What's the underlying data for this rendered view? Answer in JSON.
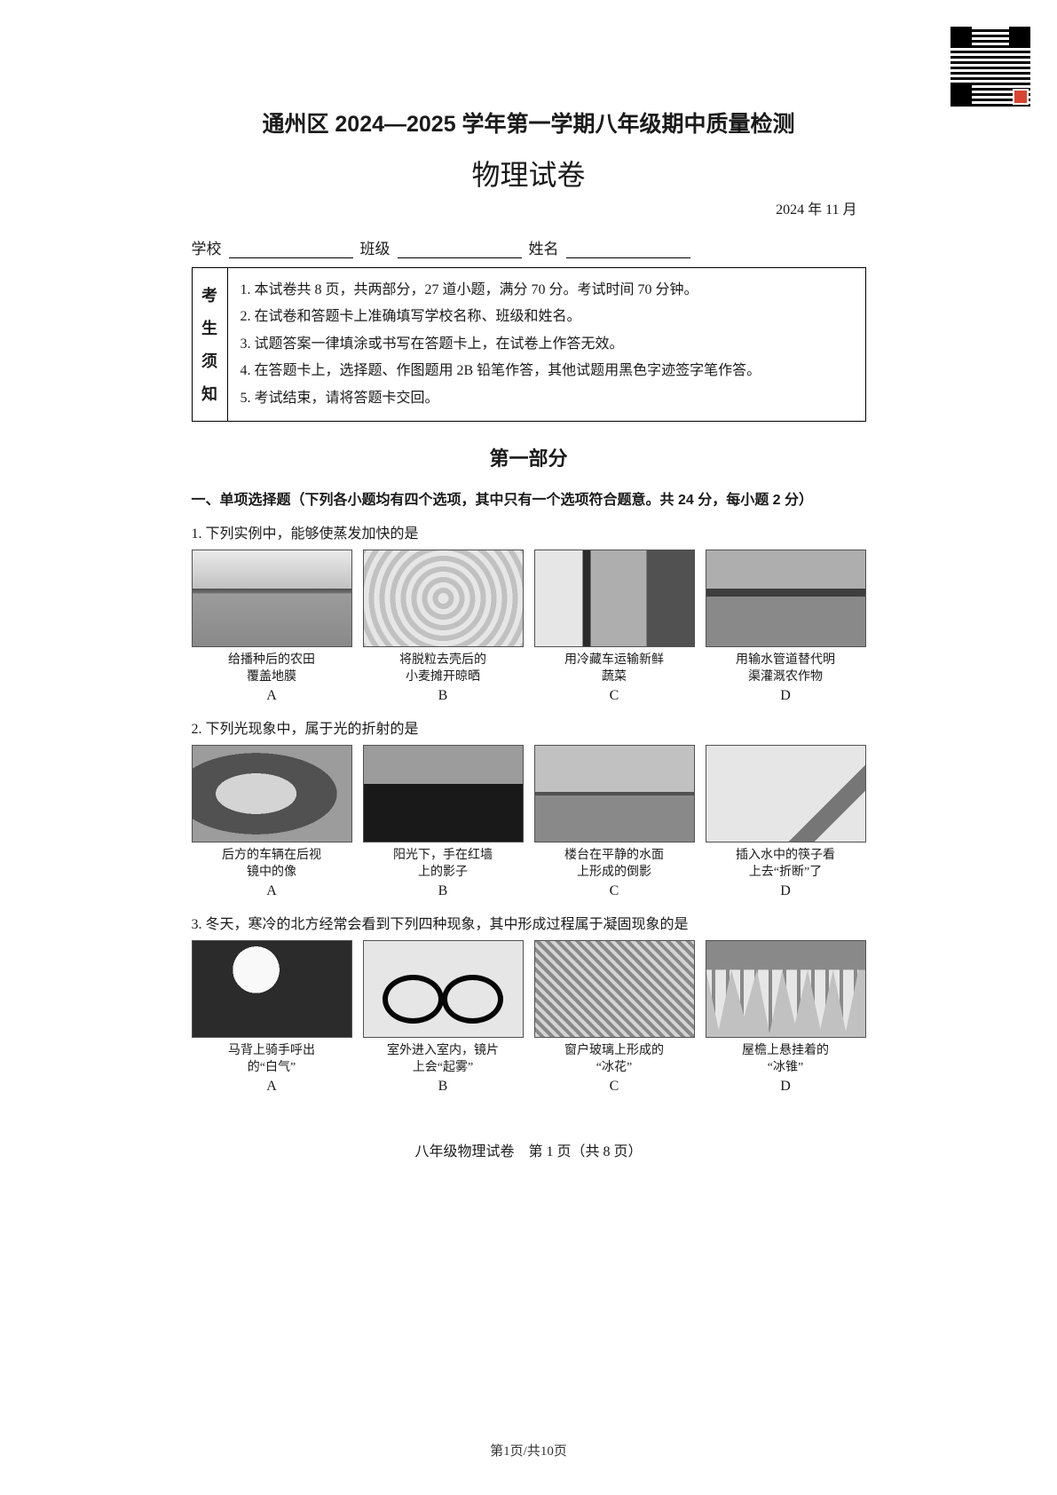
{
  "qr": {
    "badge_color": "#d94530"
  },
  "header": {
    "main_title": "通州区 2024—2025 学年第一学期八年级期中质量检测",
    "sub_title": "物理试卷",
    "date": "2024 年 11 月"
  },
  "info_fields": {
    "school_label": "学校",
    "class_label": "班级",
    "name_label": "姓名"
  },
  "notice": {
    "side_label_chars": [
      "考",
      "生",
      "须",
      "知"
    ],
    "items": [
      "1. 本试卷共 8 页，共两部分，27 道小题，满分 70 分。考试时间 70 分钟。",
      "2. 在试卷和答题卡上准确填写学校名称、班级和姓名。",
      "3. 试题答案一律填涂或书写在答题卡上，在试卷上作答无效。",
      "4. 在答题卡上，选择题、作图题用 2B 铅笔作答，其他试题用黑色字迹签字笔作答。",
      "5. 考试结束，请将答题卡交回。"
    ]
  },
  "section": {
    "title": "第一部分",
    "instruction": "一、单项选择题（下列各小题均有四个选项，其中只有一个选项符合题意。共 24 分，每小题 2 分）"
  },
  "questions": [
    {
      "number": "1",
      "text": "1. 下列实例中，能够使蒸发加快的是",
      "options": [
        {
          "img_class": "img-field",
          "caption_l1": "给播种后的农田",
          "caption_l2": "覆盖地膜",
          "letter": "A"
        },
        {
          "img_class": "img-wheat",
          "caption_l1": "将脱粒去壳后的",
          "caption_l2": "小麦摊开晾晒",
          "letter": "B"
        },
        {
          "img_class": "img-truck",
          "caption_l1": "用冷藏车运输新鲜",
          "caption_l2": "蔬菜",
          "letter": "C"
        },
        {
          "img_class": "img-pipe",
          "caption_l1": "用输水管道替代明",
          "caption_l2": "渠灌溉农作物",
          "letter": "D"
        }
      ]
    },
    {
      "number": "2",
      "text": "2. 下列光现象中，属于光的折射的是",
      "options": [
        {
          "img_class": "img-mirror",
          "caption_l1": "后方的车辆在后视",
          "caption_l2": "镜中的像",
          "letter": "A"
        },
        {
          "img_class": "img-shadow",
          "caption_l1": "阳光下，手在红墙",
          "caption_l2": "上的影子",
          "letter": "B"
        },
        {
          "img_class": "img-reflect",
          "caption_l1": "楼台在平静的水面",
          "caption_l2": "上形成的倒影",
          "letter": "C"
        },
        {
          "img_class": "img-chop",
          "caption_l1": "插入水中的筷子看",
          "caption_l2": "上去“折断”了",
          "letter": "D"
        }
      ]
    },
    {
      "number": "3",
      "text": "3. 冬天，寒冷的北方经常会看到下列四种现象，其中形成过程属于凝固现象的是",
      "options": [
        {
          "img_class": "img-breath",
          "caption_l1": "马背上骑手呼出",
          "caption_l2": "的“白气”",
          "letter": "A"
        },
        {
          "img_class": "img-glasses",
          "caption_l1": "室外进入室内，镜片",
          "caption_l2": "上会“起雾”",
          "letter": "B"
        },
        {
          "img_class": "img-frost",
          "caption_l1": "窗户玻璃上形成的",
          "caption_l2": "“冰花”",
          "letter": "C"
        },
        {
          "img_class": "img-icicle",
          "caption_l1": "屋檐上悬挂着的",
          "caption_l2": "“冰锥”",
          "letter": "D"
        }
      ]
    }
  ],
  "footer": {
    "line": "八年级物理试卷　第 1 页（共 8 页）",
    "page_num": "第1页/共10页"
  },
  "colors": {
    "text": "#1a1a1a",
    "background": "#ffffff",
    "border": "#000000"
  }
}
